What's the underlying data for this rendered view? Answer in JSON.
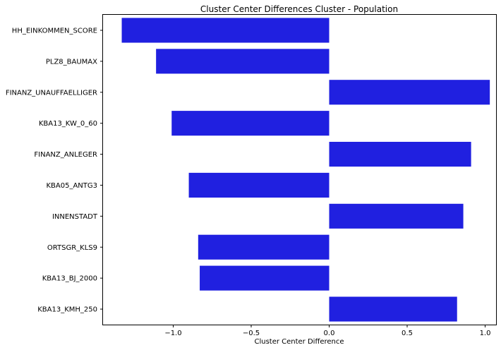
{
  "chart_data": {
    "type": "bar",
    "orientation": "horizontal",
    "title": "Cluster Center Differences Cluster - Population",
    "xlabel": "Cluster Center Difference",
    "ylabel": "",
    "categories": [
      "HH_EINKOMMEN_SCORE",
      "PLZ8_BAUMAX",
      "FINANZ_UNAUFFAELLIGER",
      "KBA13_KW_0_60",
      "FINANZ_ANLEGER",
      "KBA05_ANTG3",
      "INNENSTADT",
      "ORTSGR_KLS9",
      "KBA13_BJ_2000",
      "KBA13_KMH_250"
    ],
    "values": [
      -1.33,
      -1.11,
      1.03,
      -1.01,
      0.91,
      -0.9,
      0.86,
      -0.84,
      -0.83,
      0.82
    ],
    "xlim": [
      -1.45,
      1.07
    ],
    "xticks": [
      -1.0,
      -0.5,
      0.0,
      0.5,
      1.0
    ],
    "xtick_labels": [
      "−1.0",
      "−0.5",
      "0.0",
      "0.5",
      "1.0"
    ],
    "bar_color": "#2020e0",
    "grid": false,
    "legend": "none"
  }
}
